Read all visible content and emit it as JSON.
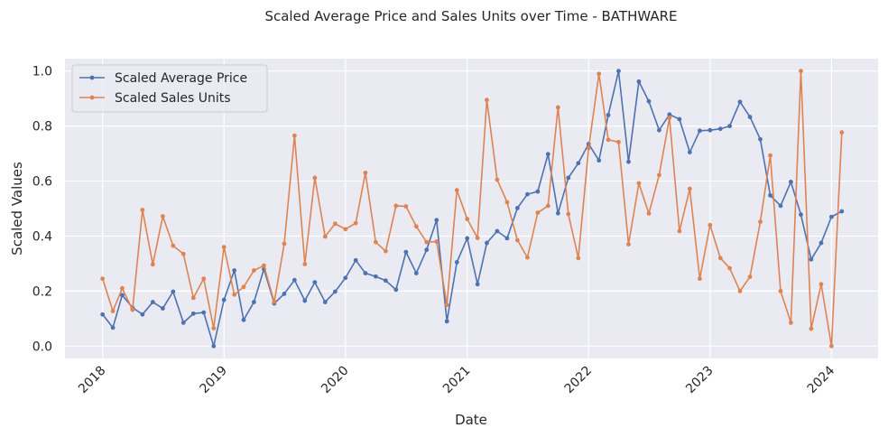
{
  "chart_data": {
    "type": "line",
    "title": "Scaled Average Price and Sales Units over Time - BATHWARE",
    "xlabel": "Date",
    "ylabel": "Scaled Values",
    "x_ticks": [
      "2018",
      "2019",
      "2020",
      "2021",
      "2022",
      "2023",
      "2024"
    ],
    "y_ticks": [
      "0.0",
      "0.2",
      "0.4",
      "0.6",
      "0.8",
      "1.0"
    ],
    "xlim": [
      "2017-09-10",
      "2024-05-20"
    ],
    "ylim": [
      -0.045,
      1.045
    ],
    "grid": true,
    "legend_position": "top-left",
    "x": [
      "2018-01-01",
      "2018-02-01",
      "2018-03-01",
      "2018-04-01",
      "2018-05-01",
      "2018-06-01",
      "2018-07-01",
      "2018-08-01",
      "2018-09-01",
      "2018-10-01",
      "2018-11-01",
      "2018-12-01",
      "2019-01-01",
      "2019-02-01",
      "2019-03-01",
      "2019-04-01",
      "2019-05-01",
      "2019-06-01",
      "2019-07-01",
      "2019-08-01",
      "2019-09-01",
      "2019-10-01",
      "2019-11-01",
      "2019-12-01",
      "2020-01-01",
      "2020-02-01",
      "2020-03-01",
      "2020-04-01",
      "2020-05-01",
      "2020-06-01",
      "2020-07-01",
      "2020-08-01",
      "2020-09-01",
      "2020-10-01",
      "2020-11-01",
      "2020-12-01",
      "2021-01-01",
      "2021-02-01",
      "2021-03-01",
      "2021-04-01",
      "2021-05-01",
      "2021-06-01",
      "2021-07-01",
      "2021-08-01",
      "2021-09-01",
      "2021-10-01",
      "2021-11-01",
      "2021-12-01",
      "2022-01-01",
      "2022-02-01",
      "2022-03-01",
      "2022-04-01",
      "2022-05-01",
      "2022-06-01",
      "2022-07-01",
      "2022-08-01",
      "2022-09-01",
      "2022-10-01",
      "2022-11-01",
      "2022-12-01",
      "2023-01-01",
      "2023-02-01",
      "2023-03-01",
      "2023-04-01",
      "2023-05-01",
      "2023-06-01",
      "2023-07-01",
      "2023-08-01",
      "2023-09-01",
      "2023-10-01",
      "2023-11-01",
      "2023-12-01",
      "2024-01-01",
      "2024-02-01"
    ],
    "series": [
      {
        "name": "Scaled Average Price",
        "color": "#4c72b0",
        "values": [
          0.115,
          0.067,
          0.185,
          0.14,
          0.115,
          0.16,
          0.137,
          0.198,
          0.085,
          0.118,
          0.122,
          0.0,
          0.168,
          0.275,
          0.095,
          0.16,
          0.28,
          0.155,
          0.19,
          0.24,
          0.165,
          0.232,
          0.16,
          0.198,
          0.248,
          0.312,
          0.265,
          0.253,
          0.238,
          0.205,
          0.342,
          0.265,
          0.35,
          0.458,
          0.09,
          0.305,
          0.392,
          0.225,
          0.375,
          0.418,
          0.392,
          0.502,
          0.552,
          0.562,
          0.698,
          0.483,
          0.612,
          0.665,
          0.735,
          0.675,
          0.84,
          1.0,
          0.67,
          0.962,
          0.89,
          0.785,
          0.842,
          0.825,
          0.705,
          0.783,
          0.785,
          0.79,
          0.8,
          0.888,
          0.833,
          0.752,
          0.548,
          0.51,
          0.597,
          0.478,
          0.315,
          0.375,
          0.47,
          0.49
        ]
      },
      {
        "name": "Scaled Sales Units",
        "color": "#dd8452",
        "values": [
          0.245,
          0.127,
          0.21,
          0.132,
          0.495,
          0.297,
          0.472,
          0.365,
          0.335,
          0.175,
          0.245,
          0.065,
          0.36,
          0.187,
          0.215,
          0.275,
          0.293,
          0.16,
          0.372,
          0.765,
          0.298,
          0.612,
          0.398,
          0.445,
          0.425,
          0.447,
          0.63,
          0.378,
          0.345,
          0.51,
          0.508,
          0.435,
          0.378,
          0.38,
          0.15,
          0.567,
          0.462,
          0.393,
          0.895,
          0.605,
          0.523,
          0.385,
          0.322,
          0.485,
          0.51,
          0.868,
          0.48,
          0.32,
          0.72,
          0.99,
          0.75,
          0.742,
          0.37,
          0.592,
          0.482,
          0.622,
          0.83,
          0.418,
          0.572,
          0.245,
          0.44,
          0.32,
          0.283,
          0.2,
          0.252,
          0.452,
          0.693,
          0.2,
          0.085,
          1.0,
          0.063,
          0.225,
          0.0,
          0.777
        ]
      }
    ]
  }
}
